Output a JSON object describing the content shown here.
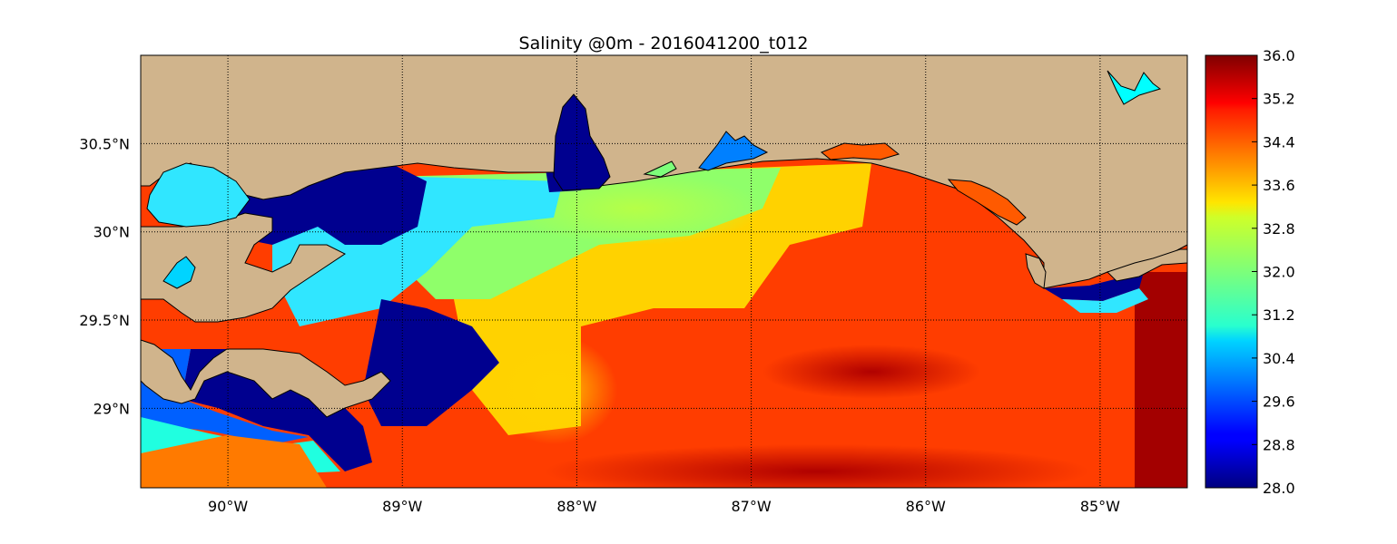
{
  "title": "Salinity @0m - 2016041200_t012",
  "map": {
    "lon_range": [
      -90.5,
      -84.5
    ],
    "lat_range": [
      28.55,
      31.0
    ],
    "lon_ticks": [
      {
        "value": -90,
        "label": "90°W"
      },
      {
        "value": -89,
        "label": "89°W"
      },
      {
        "value": -88,
        "label": "88°W"
      },
      {
        "value": -87,
        "label": "87°W"
      },
      {
        "value": -86,
        "label": "86°W"
      },
      {
        "value": -85,
        "label": "85°W"
      }
    ],
    "lat_ticks": [
      {
        "value": 30.5,
        "label": "30.5°N"
      },
      {
        "value": 30.0,
        "label": "30°N"
      },
      {
        "value": 29.5,
        "label": "29.5°N"
      },
      {
        "value": 29.0,
        "label": "29°N"
      }
    ],
    "grid": true,
    "land_color": "#d0b48c"
  },
  "colorbar": {
    "min": 28.0,
    "max": 36.0,
    "colormap": "jet",
    "ticks": [
      "28.0",
      "28.8",
      "29.6",
      "30.4",
      "31.2",
      "32.0",
      "32.8",
      "33.6",
      "34.4",
      "35.2",
      "36.0"
    ]
  }
}
